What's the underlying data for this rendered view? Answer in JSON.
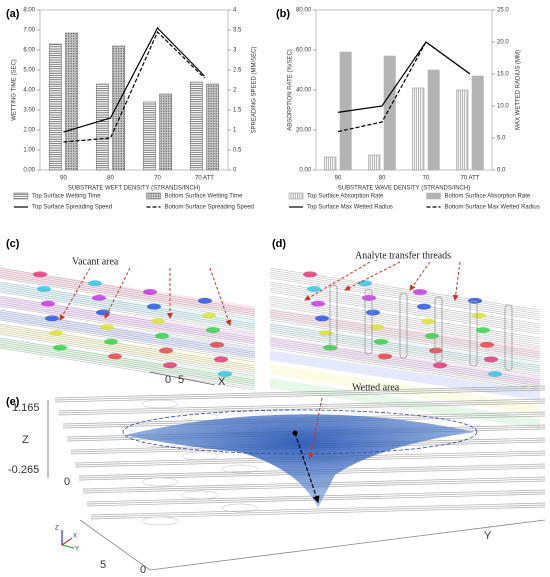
{
  "chart_data": [
    {
      "type": "bar",
      "panel_label": "(a)",
      "x_label": "SUBSTRATE WEFT DENSITY (STRANDS/INCH)",
      "y_label": "WETTING TIME (SEC)",
      "y2_label": "SPREADING SPEED (MM/SEC)",
      "categories": [
        "90",
        "80",
        "70",
        "70 ATT"
      ],
      "ylim": [
        0,
        8
      ],
      "yticks": [
        {
          "value": 0,
          "label": "0.00"
        },
        {
          "value": 1,
          "label": "1.00"
        },
        {
          "value": 2,
          "label": "2.00"
        },
        {
          "value": 3,
          "label": "3.00"
        },
        {
          "value": 4,
          "label": "4.00"
        },
        {
          "value": 5,
          "label": "5.00"
        },
        {
          "value": 6,
          "label": "6.00"
        },
        {
          "value": 7,
          "label": "7.00"
        },
        {
          "value": 8,
          "label": "8.00"
        }
      ],
      "y2lim": [
        0,
        4
      ],
      "y2ticks": [
        0,
        0.5,
        1,
        1.5,
        2,
        2.5,
        3,
        3.5,
        4
      ],
      "series": [
        {
          "name": "Top Surface Wetting Time",
          "kind": "bar",
          "pattern": "hstripe",
          "color": "#777777",
          "values": [
            6.3,
            4.3,
            3.4,
            4.4
          ]
        },
        {
          "name": "Bottom Surface Wetting Time",
          "kind": "bar",
          "pattern": "dots",
          "color": "#777777",
          "values": [
            6.85,
            6.2,
            3.8,
            4.3
          ]
        },
        {
          "name": "Top Surface Spreading Speed",
          "kind": "line",
          "axis": "y2",
          "color": "#000000",
          "dashed": false,
          "values": [
            0.95,
            1.3,
            3.55,
            2.35
          ]
        },
        {
          "name": "Bottom Surface Spreading Speed",
          "kind": "line",
          "axis": "y2",
          "color": "#000000",
          "dashed": true,
          "values": [
            0.7,
            0.8,
            3.45,
            2.3
          ]
        }
      ]
    },
    {
      "type": "bar",
      "panel_label": "(b)",
      "x_label": "SUBSTRATE WAVE DENSITY (STRANDS/INCH)",
      "y_label": "ABSORPTION RATE (%/SEC)",
      "y2_label": "MAX WETTED RADIUS (MM)",
      "categories": [
        "90",
        "80",
        "70",
        "70 ATT"
      ],
      "ylim": [
        0,
        80
      ],
      "yticks": [
        {
          "value": 0,
          "label": "0.00"
        },
        {
          "value": 20,
          "label": "20.00"
        },
        {
          "value": 40,
          "label": "40.00"
        },
        {
          "value": 60,
          "label": "60.00"
        },
        {
          "value": 80,
          "label": "80.00"
        }
      ],
      "y2lim": [
        0,
        25
      ],
      "y2ticks": [
        {
          "value": 0,
          "label": "0.0"
        },
        {
          "value": 5,
          "label": "5.0"
        },
        {
          "value": 10,
          "label": "10.0"
        },
        {
          "value": 15,
          "label": "15.0"
        },
        {
          "value": 20,
          "label": "20.0"
        },
        {
          "value": 25,
          "label": "25.0"
        }
      ],
      "series": [
        {
          "name": "Top Surface Absorption Rate",
          "kind": "bar",
          "pattern": "vstripe",
          "color": "#999999",
          "values": [
            6.5,
            7.5,
            41,
            40
          ]
        },
        {
          "name": "Bottom Surface Absorption Rate",
          "kind": "bar",
          "pattern": "solid",
          "color": "#b3b3b3",
          "values": [
            59,
            57,
            50,
            47
          ]
        },
        {
          "name": "Top Surface Max Wetted Radius",
          "kind": "line",
          "axis": "y2",
          "color": "#000000",
          "dashed": false,
          "values": [
            9,
            10,
            20,
            15
          ]
        },
        {
          "name": "Bottom Surface Max Wetted Radius",
          "kind": "line",
          "axis": "y2",
          "color": "#000000",
          "dashed": true,
          "values": [
            6,
            7.5,
            20,
            15
          ]
        }
      ]
    }
  ],
  "illustrations": [
    {
      "label": "(c)",
      "annotation": "Vacant area",
      "axis_labels": [
        "0",
        "5",
        "X"
      ]
    },
    {
      "label": "(d)",
      "annotation": "Analyte transfer threads"
    },
    {
      "label": "(e)",
      "annotation": "Wetted area",
      "axis_labels": [
        "1.165",
        "Z",
        "-0.265",
        "0",
        "Y",
        "5",
        "0"
      ],
      "triad": [
        "Z",
        "X",
        "Y"
      ]
    }
  ]
}
